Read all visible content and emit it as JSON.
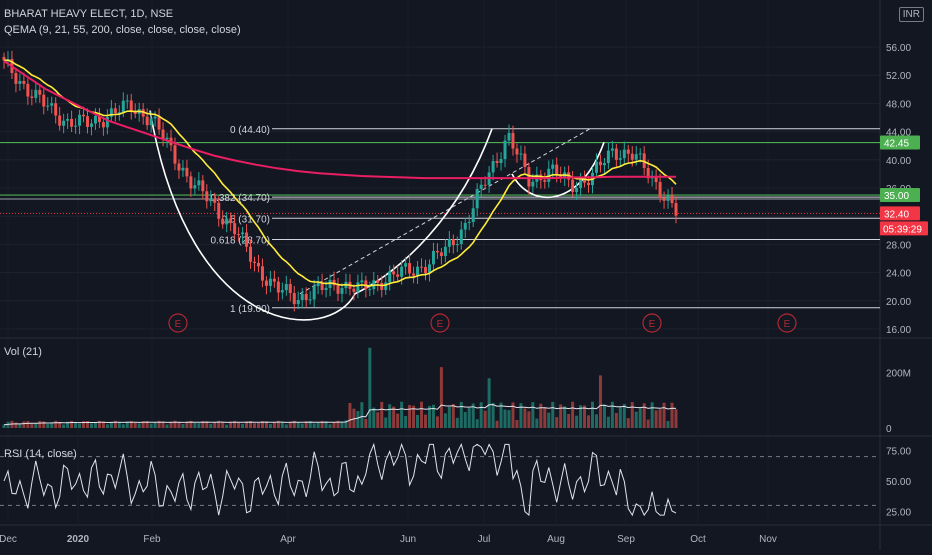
{
  "header": {
    "symbol_line": "BHARAT HEAVY ELECT, 1D, NSE",
    "indicator_line": "QEMA (9, 21, 55, 200, close, close, close, close)",
    "currency": "INR"
  },
  "price_axis": {
    "ticks": [
      "56.00",
      "52.00",
      "48.00",
      "44.00",
      "40.00",
      "36.00",
      "32.00",
      "28.00",
      "24.00",
      "20.00",
      "16.00"
    ]
  },
  "price_tags": [
    {
      "label": "42.45",
      "value": 42.45,
      "color": "#4caf50"
    },
    {
      "label": "35.00",
      "value": 35.0,
      "color": "#4caf50"
    },
    {
      "label": "32.40",
      "value": 32.4,
      "color": "#f23645"
    }
  ],
  "countdown": "05:39:29",
  "fib_labels": [
    "0 (44.40)",
    "0.382 (34.70)",
    "0.5 (31.70)",
    "0.618 (28.70)",
    "1 (19.00)"
  ],
  "earnings_marker": "E",
  "volume_pane": {
    "title": "Vol (21)",
    "ticks": [
      "200M",
      "0"
    ]
  },
  "rsi_pane": {
    "title": "RSI (14, close)",
    "ticks": [
      "75.00",
      "50.00",
      "25.00"
    ]
  },
  "time_axis": [
    "Dec",
    "2020",
    "Feb",
    "Apr",
    "Jun",
    "Jul",
    "Aug",
    "Sep",
    "Oct",
    "Nov"
  ],
  "colors": {
    "up": "#26a69a",
    "down": "#ef5350",
    "ema_fast": "#ffeb3b",
    "ema_slow": "#e91e63",
    "level": "#4caf50",
    "pattern": "#ffffff"
  },
  "chart_data": {
    "type": "candlestick",
    "title": "BHARAT HEAVY ELECT, 1D, NSE",
    "ylim": [
      15,
      57
    ],
    "x": [
      "Dec",
      "Dec",
      "Dec",
      "Jan",
      "Jan",
      "Jan",
      "Jan",
      "Feb",
      "Feb",
      "Feb",
      "Mar",
      "Mar",
      "Mar",
      "Mar",
      "Apr",
      "Apr",
      "Apr",
      "May",
      "May",
      "May",
      "May",
      "Jun",
      "Jun",
      "Jun",
      "Jul",
      "Jul",
      "Jul",
      "Aug",
      "Aug",
      "Aug",
      "Sep",
      "Sep",
      "Sep"
    ],
    "series": [
      {
        "name": "close",
        "values": [
          53.5,
          50.5,
          47.5,
          45.5,
          45,
          46.5,
          47.5,
          46,
          41,
          36.5,
          33.5,
          30,
          25,
          21.5,
          20.5,
          21.5,
          22.5,
          21.5,
          23,
          24,
          25,
          27,
          31,
          37.5,
          43.5,
          37,
          38.5,
          36.5,
          37.5,
          41.5,
          40.5,
          37,
          32.4
        ]
      },
      {
        "name": "QEMA 200",
        "values": [
          54,
          52,
          50,
          48.5,
          47,
          45.5,
          44.5,
          43.5,
          42.5,
          41.5,
          40.6,
          39.9,
          39.3,
          38.8,
          38.4,
          38.1,
          37.9,
          37.7,
          37.6,
          37.5,
          37.4,
          37.4,
          37.4,
          37.4,
          37.4,
          37.4,
          37.4,
          37.5,
          37.5,
          37.6,
          37.6,
          37.6,
          37.6
        ]
      }
    ],
    "volume_ylim": [
      0,
      300
    ],
    "rsi_ylim": [
      18,
      82
    ],
    "rsi_levels": [
      70,
      30
    ]
  }
}
